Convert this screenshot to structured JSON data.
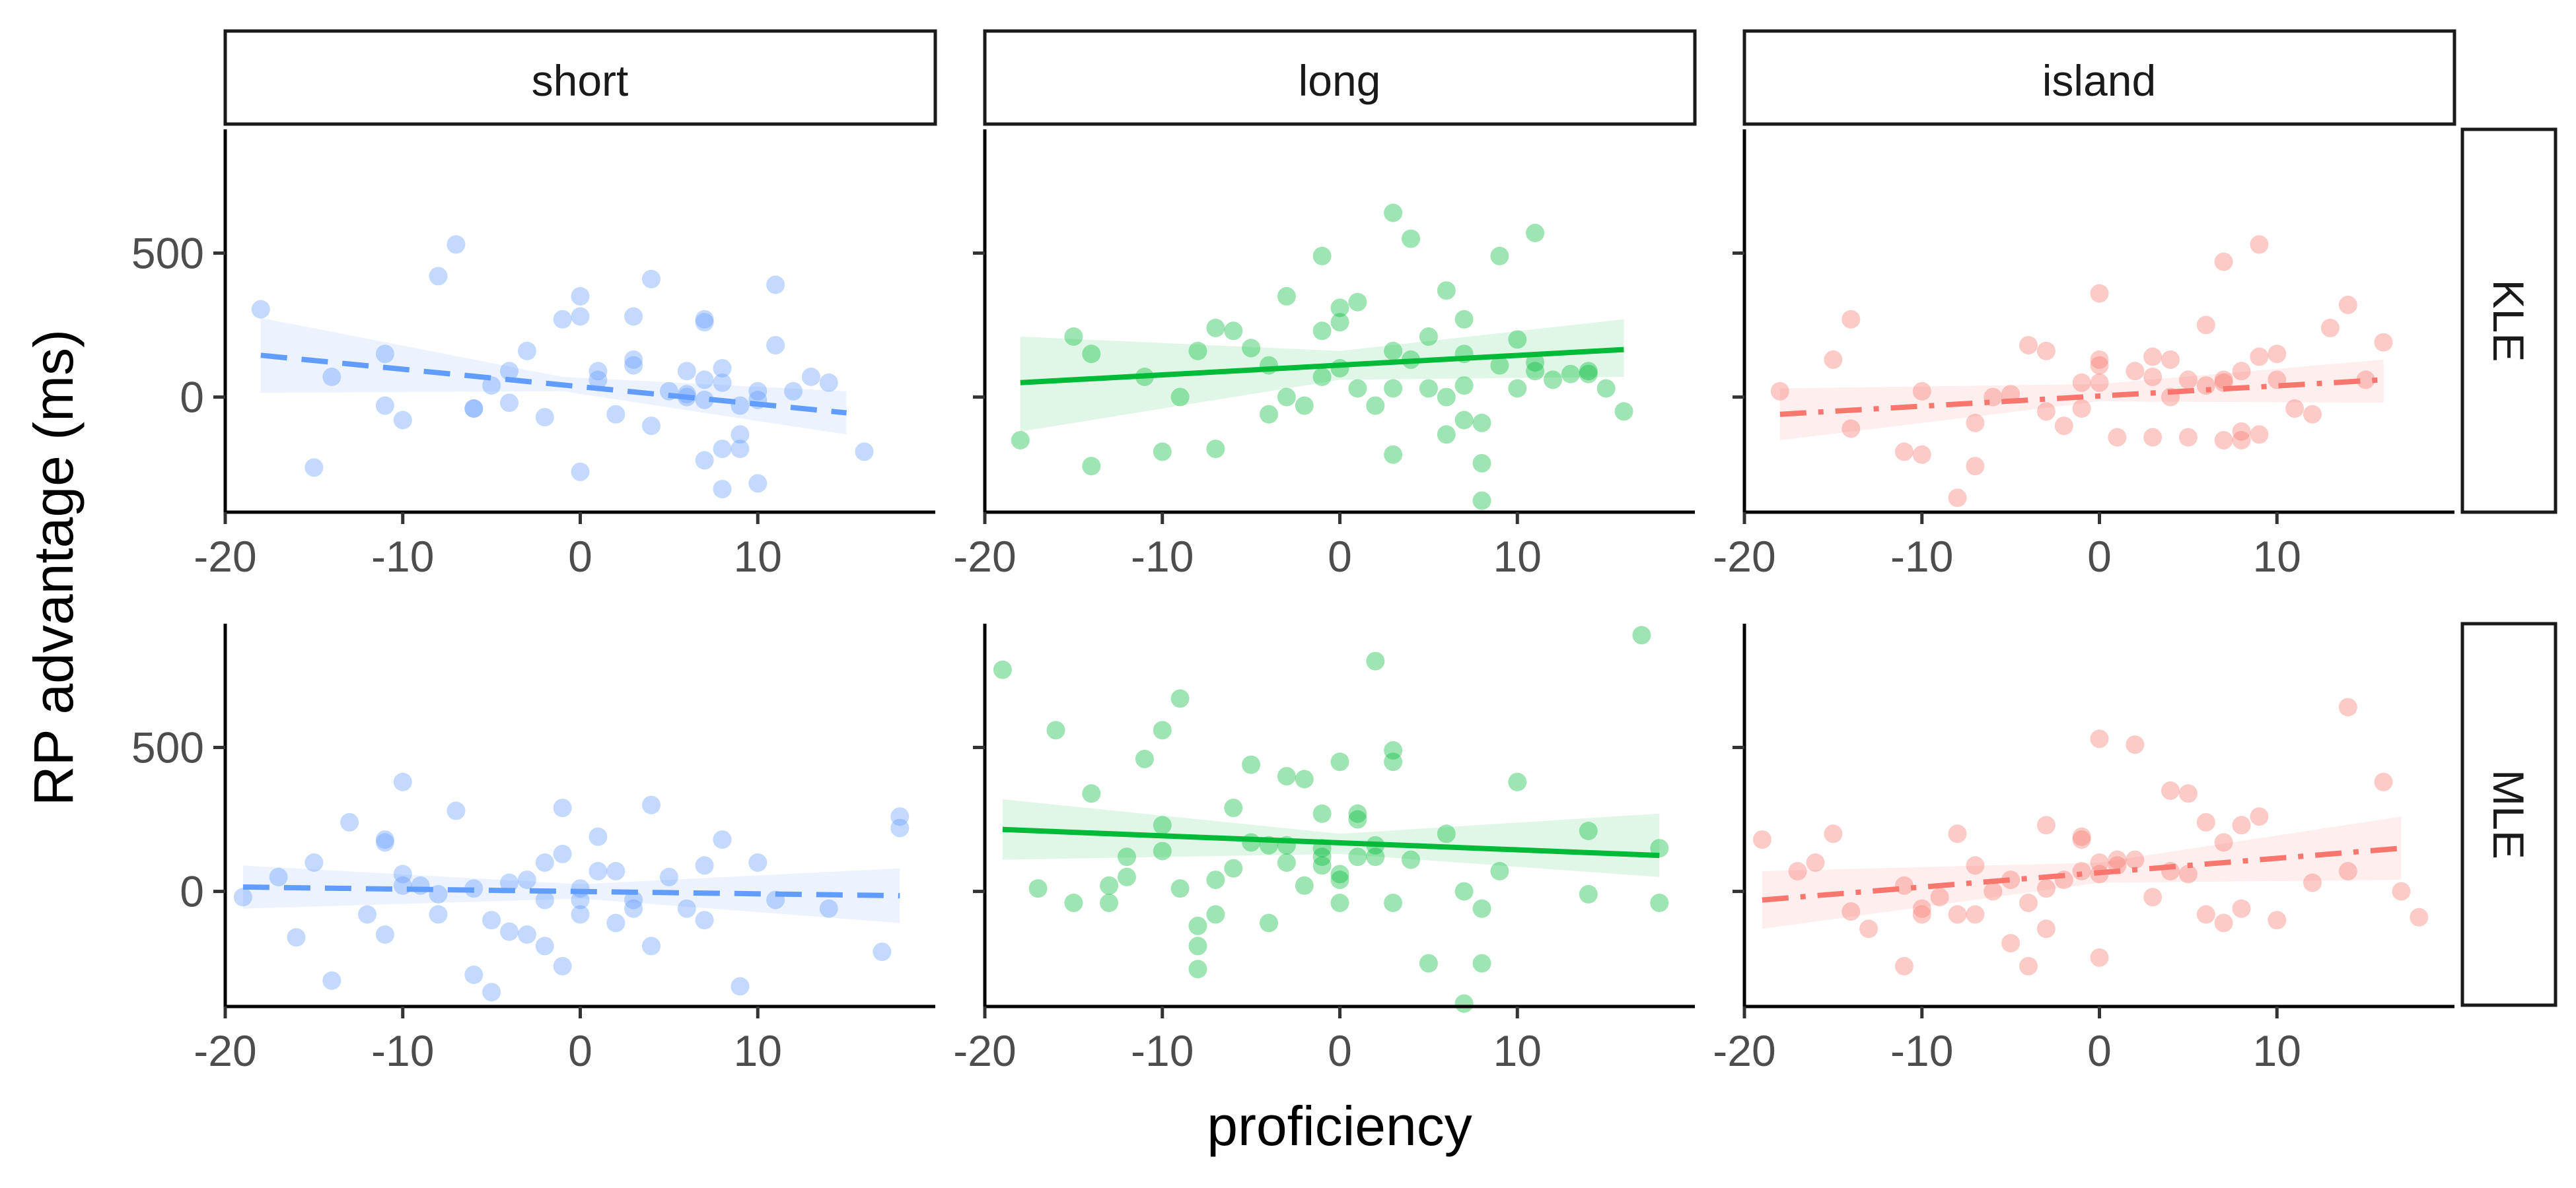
{
  "chart_data": {
    "type": "scatter",
    "xlabel": "proficiency",
    "ylabel": "RP advantage (ms)",
    "xlim": [
      -20,
      20
    ],
    "ylim": [
      -400,
      930
    ],
    "x_ticks": [
      -20,
      -10,
      0,
      10
    ],
    "x_tick_labels": [
      "-20",
      "-10",
      "0",
      "10"
    ],
    "y_ticks": [
      0,
      500
    ],
    "y_tick_labels": [
      "0",
      "500"
    ],
    "columns": [
      "short",
      "long",
      "island"
    ],
    "rows": [
      "KLE",
      "MLE"
    ],
    "grid": false,
    "legend": "none",
    "colors": {
      "short": "#619CFF",
      "long": "#00BA38",
      "island": "#F8766D"
    },
    "line_styles": {
      "short": "dashed",
      "long": "solid",
      "island": "dashdot"
    },
    "panels": [
      {
        "column": "short",
        "row": "KLE",
        "color": "#619CFF",
        "line": "dashed",
        "fit": {
          "x": [
            -18,
            15
          ],
          "y": [
            145,
            -55
          ]
        },
        "band": {
          "x": [
            -18,
            -1,
            15
          ],
          "lower": [
            15,
            20,
            -130
          ],
          "upper": [
            275,
            70,
            20
          ]
        },
        "points": {
          "x": [
            -18,
            -15,
            -14,
            -11,
            -11,
            -10,
            -8,
            -7,
            -6,
            -6,
            -5,
            -4,
            -4,
            -3,
            -1,
            0,
            0,
            0,
            1,
            3,
            3,
            3,
            4,
            4,
            6,
            6,
            6,
            7,
            7,
            7,
            7,
            7,
            8,
            8,
            8,
            8,
            9,
            9,
            9,
            10,
            10,
            10,
            11,
            11,
            12,
            13,
            14,
            16,
            2,
            5,
            -2,
            1
          ],
          "y": [
            305,
            -245,
            70,
            150,
            -30,
            -80,
            420,
            530,
            -40,
            -40,
            40,
            90,
            -20,
            160,
            270,
            350,
            280,
            -260,
            90,
            280,
            130,
            110,
            -100,
            410,
            10,
            90,
            0,
            270,
            260,
            60,
            -10,
            -220,
            -180,
            -320,
            100,
            50,
            -30,
            -130,
            -180,
            -10,
            20,
            -300,
            180,
            390,
            20,
            70,
            50,
            -190,
            -60,
            20,
            -70,
            60
          ]
        }
      },
      {
        "column": "long",
        "row": "KLE",
        "color": "#00BA38",
        "line": "solid",
        "fit": {
          "x": [
            -18,
            16
          ],
          "y": [
            50,
            165
          ]
        },
        "band": {
          "x": [
            -18,
            0,
            16
          ],
          "lower": [
            -120,
            60,
            70
          ],
          "upper": [
            210,
            160,
            270
          ]
        },
        "points": {
          "x": [
            -18,
            -15,
            -14,
            -14,
            -11,
            -10,
            -9,
            -8,
            -7,
            -7,
            -6,
            -5,
            -4,
            -4,
            -3,
            -3,
            -2,
            -1,
            -1,
            -1,
            0,
            0,
            0,
            1,
            1,
            2,
            3,
            3,
            3,
            3,
            4,
            4,
            5,
            5,
            6,
            6,
            6,
            7,
            7,
            7,
            7,
            8,
            8,
            8,
            9,
            9,
            10,
            10,
            11,
            11,
            11,
            12,
            13,
            14,
            14,
            15,
            16
          ],
          "y": [
            -150,
            210,
            150,
            -240,
            70,
            -190,
            0,
            160,
            -180,
            240,
            230,
            170,
            110,
            -60,
            350,
            0,
            -30,
            70,
            490,
            230,
            310,
            260,
            100,
            330,
            30,
            -30,
            640,
            30,
            160,
            -200,
            550,
            130,
            30,
            210,
            370,
            -130,
            0,
            150,
            270,
            40,
            -80,
            -360,
            -90,
            -230,
            110,
            490,
            200,
            30,
            570,
            120,
            90,
            60,
            80,
            80,
            90,
            30,
            -50
          ]
        }
      },
      {
        "column": "island",
        "row": "KLE",
        "color": "#F8766D",
        "line": "dashdot",
        "fit": {
          "x": [
            -18,
            16
          ],
          "y": [
            -60,
            60
          ]
        },
        "band": {
          "x": [
            -18,
            0,
            16
          ],
          "lower": [
            -150,
            -15,
            -20
          ],
          "upper": [
            30,
            45,
            130
          ]
        },
        "points": {
          "x": [
            -18,
            -15,
            -14,
            -14,
            -11,
            -10,
            -10,
            -8,
            -7,
            -7,
            -6,
            -5,
            -4,
            -3,
            -3,
            -2,
            -1,
            -1,
            0,
            0,
            0,
            0,
            1,
            2,
            3,
            3,
            3,
            4,
            4,
            5,
            5,
            6,
            6,
            7,
            7,
            7,
            7,
            8,
            8,
            8,
            9,
            9,
            9,
            10,
            10,
            11,
            12,
            13,
            14,
            15,
            16
          ],
          "y": [
            20,
            130,
            270,
            -110,
            -190,
            -200,
            20,
            -350,
            -240,
            -90,
            0,
            10,
            180,
            160,
            -50,
            -100,
            50,
            -40,
            360,
            130,
            110,
            50,
            -140,
            90,
            140,
            70,
            -140,
            0,
            130,
            60,
            -140,
            250,
            40,
            470,
            50,
            60,
            -150,
            90,
            -120,
            -150,
            530,
            140,
            -130,
            150,
            60,
            -40,
            -60,
            240,
            320,
            60,
            190
          ]
        }
      },
      {
        "column": "short",
        "row": "MLE",
        "color": "#619CFF",
        "line": "dashed",
        "fit": {
          "x": [
            -19,
            18
          ],
          "y": [
            15,
            -15
          ]
        },
        "band": {
          "x": [
            -19,
            0,
            18
          ],
          "lower": [
            -60,
            -25,
            -110
          ],
          "upper": [
            90,
            25,
            80
          ]
        },
        "points": {
          "x": [
            -19,
            -17,
            -16,
            -15,
            -14,
            -13,
            -12,
            -11,
            -11,
            -11,
            -10,
            -10,
            -10,
            -9,
            -8,
            -8,
            -7,
            -6,
            -6,
            -5,
            -5,
            -4,
            -4,
            -3,
            -3,
            -2,
            -2,
            -2,
            -1,
            -1,
            -1,
            0,
            0,
            0,
            1,
            1,
            2,
            2,
            3,
            3,
            4,
            4,
            5,
            6,
            7,
            7,
            8,
            9,
            10,
            11,
            14,
            17,
            18,
            18
          ],
          "y": [
            -20,
            50,
            -160,
            100,
            -310,
            240,
            -80,
            170,
            180,
            -150,
            380,
            60,
            20,
            20,
            -10,
            -80,
            280,
            -290,
            10,
            -350,
            -100,
            -140,
            30,
            -150,
            40,
            100,
            -30,
            -190,
            290,
            130,
            -260,
            10,
            -30,
            -80,
            190,
            70,
            70,
            -110,
            -30,
            -60,
            300,
            -190,
            50,
            -60,
            90,
            -100,
            180,
            -330,
            100,
            -30,
            -60,
            -210,
            260,
            220
          ]
        }
      },
      {
        "column": "long",
        "row": "MLE",
        "color": "#00BA38",
        "line": "solid",
        "fit": {
          "x": [
            -19,
            18
          ],
          "y": [
            215,
            125
          ]
        },
        "band": {
          "x": [
            -19,
            0,
            18
          ],
          "lower": [
            110,
            130,
            50
          ],
          "upper": [
            320,
            200,
            270
          ]
        },
        "points": {
          "x": [
            -19,
            -17,
            -16,
            -15,
            -14,
            -13,
            -13,
            -12,
            -12,
            -11,
            -10,
            -10,
            -10,
            -9,
            -9,
            -8,
            -8,
            -8,
            -7,
            -7,
            -6,
            -6,
            -5,
            -5,
            -4,
            -4,
            -3,
            -3,
            -3,
            -2,
            -2,
            -1,
            -1,
            -1,
            -1,
            0,
            0,
            0,
            0,
            1,
            1,
            1,
            2,
            2,
            2,
            3,
            3,
            3,
            4,
            5,
            6,
            7,
            7,
            8,
            8,
            9,
            10,
            14,
            14,
            17,
            18,
            18
          ],
          "y": [
            770,
            10,
            560,
            -40,
            340,
            20,
            -40,
            120,
            50,
            460,
            560,
            230,
            140,
            670,
            10,
            -120,
            -270,
            -190,
            40,
            -80,
            290,
            80,
            440,
            170,
            160,
            -110,
            400,
            160,
            100,
            20,
            390,
            270,
            150,
            120,
            90,
            60,
            40,
            450,
            -40,
            120,
            270,
            250,
            800,
            120,
            160,
            490,
            450,
            -40,
            110,
            -250,
            200,
            0,
            -390,
            -60,
            -250,
            70,
            380,
            210,
            -10,
            890,
            150,
            -40
          ]
        }
      },
      {
        "column": "island",
        "row": "MLE",
        "color": "#F8766D",
        "line": "dashdot",
        "fit": {
          "x": [
            -19,
            17
          ],
          "y": [
            -30,
            150
          ]
        },
        "band": {
          "x": [
            -19,
            0,
            17
          ],
          "lower": [
            -130,
            30,
            40
          ],
          "upper": [
            70,
            100,
            260
          ]
        },
        "points": {
          "x": [
            -19,
            -17,
            -16,
            -15,
            -14,
            -13,
            -11,
            -11,
            -10,
            -10,
            -9,
            -8,
            -8,
            -7,
            -7,
            -6,
            -5,
            -5,
            -4,
            -4,
            -3,
            -3,
            -3,
            -2,
            -1,
            -1,
            -1,
            0,
            0,
            0,
            0,
            1,
            1,
            2,
            2,
            3,
            4,
            4,
            5,
            5,
            6,
            6,
            7,
            7,
            8,
            8,
            9,
            10,
            12,
            14,
            14,
            16,
            17,
            18
          ],
          "y": [
            180,
            70,
            100,
            200,
            -70,
            -130,
            20,
            -260,
            -60,
            -80,
            -20,
            200,
            -80,
            90,
            -80,
            0,
            40,
            -180,
            -40,
            -260,
            10,
            230,
            -130,
            40,
            190,
            180,
            70,
            530,
            100,
            -230,
            60,
            110,
            90,
            510,
            110,
            -20,
            350,
            70,
            340,
            60,
            240,
            -80,
            170,
            -110,
            230,
            -60,
            260,
            -100,
            30,
            640,
            70,
            380,
            0,
            -90
          ]
        }
      }
    ]
  }
}
